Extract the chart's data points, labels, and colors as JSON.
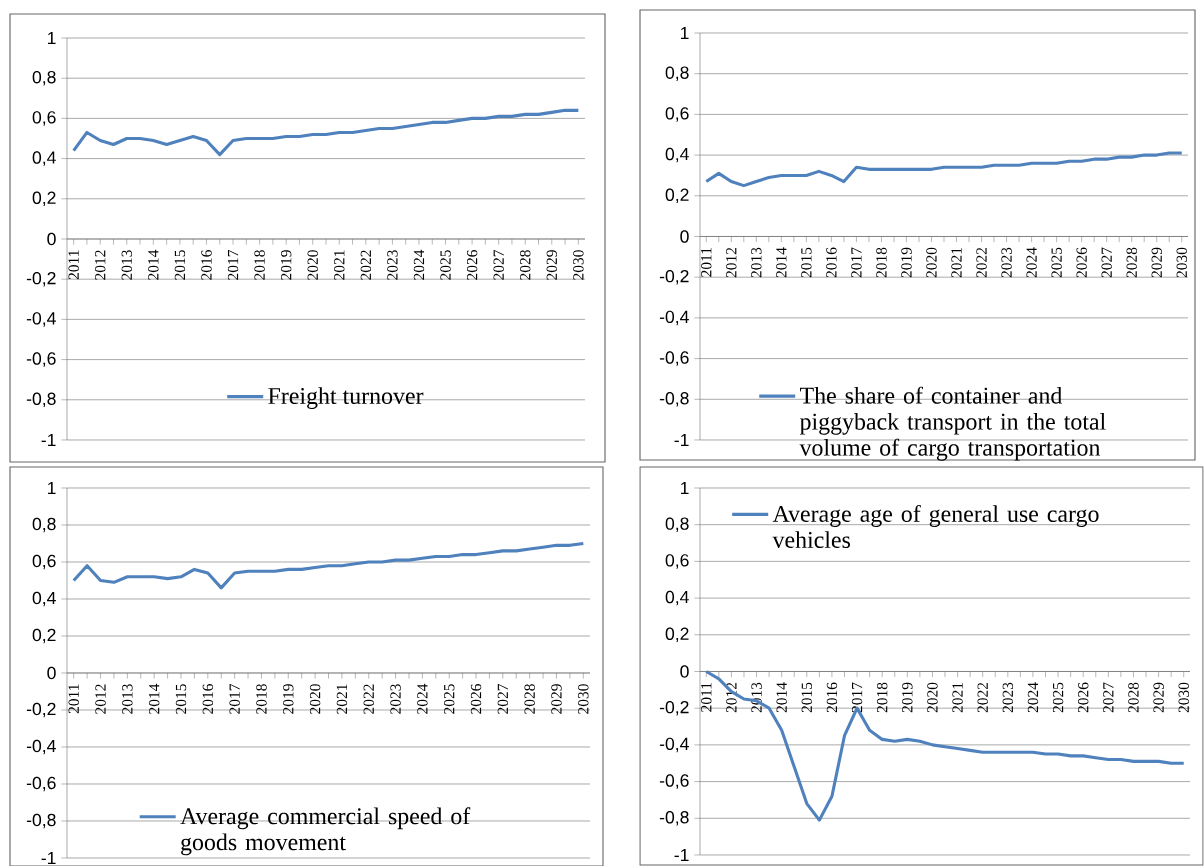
{
  "chart_data": [
    {
      "type": "line",
      "categories": [
        "2011",
        null,
        "2012",
        null,
        "2013",
        null,
        "2014",
        null,
        "2015",
        null,
        "2016",
        null,
        "2017",
        null,
        "2018",
        null,
        "2019",
        null,
        "2020",
        null,
        "2021",
        null,
        "2022",
        null,
        "2023",
        null,
        "2024",
        null,
        "2025",
        null,
        "2026",
        null,
        "2027",
        null,
        "2028",
        null,
        "2029",
        null,
        "2030"
      ],
      "series": [
        {
          "name": "Freight turnover",
          "color": "#4f81bd",
          "values": [
            0.44,
            0.53,
            0.49,
            0.47,
            0.5,
            0.5,
            0.49,
            0.47,
            0.49,
            0.51,
            0.49,
            0.42,
            0.49,
            0.5,
            0.5,
            0.5,
            0.51,
            0.51,
            0.52,
            0.52,
            0.53,
            0.53,
            0.54,
            0.55,
            0.55,
            0.56,
            0.57,
            0.58,
            0.58,
            0.59,
            0.6,
            0.6,
            0.61,
            0.61,
            0.62,
            0.62,
            0.63,
            0.64,
            0.64
          ]
        }
      ],
      "ylim": [
        -1,
        1
      ],
      "yticks": [
        -1,
        {
          "value": -0.8,
          "label": "-0,8"
        },
        {
          "value": -0.6,
          "label": "-0,6"
        },
        {
          "value": -0.4,
          "label": "-0,4"
        },
        {
          "value": -0.2,
          "label": "-0,2"
        },
        0,
        {
          "value": 0.2,
          "label": "0,2"
        },
        {
          "value": 0.4,
          "label": "0,4"
        },
        {
          "value": 0.6,
          "label": "0,6"
        },
        {
          "value": 0.8,
          "label": "0,8"
        },
        1
      ],
      "grid": "y",
      "legend": "bottom"
    },
    {
      "type": "line",
      "categories": [
        "2011",
        null,
        "2012",
        null,
        "2013",
        null,
        "2014",
        null,
        "2015",
        null,
        "2016",
        null,
        "2017",
        null,
        "2018",
        null,
        "2019",
        null,
        "2020",
        null,
        "2021",
        null,
        "2022",
        null,
        "2023",
        null,
        "2024",
        null,
        "2025",
        null,
        "2026",
        null,
        "2027",
        null,
        "2028",
        null,
        "2029",
        null,
        "2030"
      ],
      "series": [
        {
          "name": "The share of container and piggyback transport in the total volume of cargo transportation",
          "color": "#4f81bd",
          "values": [
            0.27,
            0.31,
            0.27,
            0.25,
            0.27,
            0.29,
            0.3,
            0.3,
            0.3,
            0.32,
            0.3,
            0.27,
            0.34,
            0.33,
            0.33,
            0.33,
            0.33,
            0.33,
            0.33,
            0.34,
            0.34,
            0.34,
            0.34,
            0.35,
            0.35,
            0.35,
            0.36,
            0.36,
            0.36,
            0.37,
            0.37,
            0.38,
            0.38,
            0.39,
            0.39,
            0.4,
            0.4,
            0.41,
            0.41
          ]
        }
      ],
      "ylim": [
        -1,
        1
      ],
      "yticks": [
        -1,
        {
          "value": -0.8,
          "label": "-0,8"
        },
        {
          "value": -0.6,
          "label": "-0,6"
        },
        {
          "value": -0.4,
          "label": "-0,4"
        },
        {
          "value": -0.2,
          "label": "-0,2"
        },
        0,
        {
          "value": 0.2,
          "label": "0,2"
        },
        {
          "value": 0.4,
          "label": "0,4"
        },
        {
          "value": 0.6,
          "label": "0,6"
        },
        {
          "value": 0.8,
          "label": "0,8"
        },
        1
      ],
      "grid": "y",
      "legend": "bottom"
    },
    {
      "type": "line",
      "categories": [
        "2011",
        null,
        "2012",
        null,
        "2013",
        null,
        "2014",
        null,
        "2015",
        null,
        "2016",
        null,
        "2017",
        null,
        "2018",
        null,
        "2019",
        null,
        "2020",
        null,
        "2021",
        null,
        "2022",
        null,
        "2023",
        null,
        "2024",
        null,
        "2025",
        null,
        "2026",
        null,
        "2027",
        null,
        "2028",
        null,
        "2029",
        null,
        "2030"
      ],
      "series": [
        {
          "name": "Average commercial speed of goods movement",
          "color": "#4f81bd",
          "values": [
            0.5,
            0.58,
            0.5,
            0.49,
            0.52,
            0.52,
            0.52,
            0.51,
            0.52,
            0.56,
            0.54,
            0.46,
            0.54,
            0.55,
            0.55,
            0.55,
            0.56,
            0.56,
            0.57,
            0.58,
            0.58,
            0.59,
            0.6,
            0.6,
            0.61,
            0.61,
            0.62,
            0.63,
            0.63,
            0.64,
            0.64,
            0.65,
            0.66,
            0.66,
            0.67,
            0.68,
            0.69,
            0.69,
            0.7
          ]
        }
      ],
      "ylim": [
        -1,
        1
      ],
      "yticks": [
        -1,
        {
          "value": -0.8,
          "label": "-0,8"
        },
        {
          "value": -0.6,
          "label": "-0,6"
        },
        {
          "value": -0.4,
          "label": "-0,4"
        },
        {
          "value": -0.2,
          "label": "-0,2"
        },
        0,
        {
          "value": 0.2,
          "label": "0,2"
        },
        {
          "value": 0.4,
          "label": "0,4"
        },
        {
          "value": 0.6,
          "label": "0,6"
        },
        {
          "value": 0.8,
          "label": "0,8"
        },
        1
      ],
      "grid": "y",
      "legend": "bottom"
    },
    {
      "type": "line",
      "categories": [
        "2011",
        null,
        "2012",
        null,
        "2013",
        null,
        "2014",
        null,
        "2015",
        null,
        "2016",
        null,
        "2017",
        null,
        "2018",
        null,
        "2019",
        null,
        "2020",
        null,
        "2021",
        null,
        "2022",
        null,
        "2023",
        null,
        "2024",
        null,
        "2025",
        null,
        "2026",
        null,
        "2027",
        null,
        "2028",
        null,
        "2029",
        null,
        "2030"
      ],
      "series": [
        {
          "name": "Average age of general use cargo vehicles",
          "color": "#4f81bd",
          "values": [
            0,
            -0.04,
            -0.11,
            -0.15,
            -0.16,
            -0.2,
            -0.32,
            -0.52,
            -0.72,
            -0.81,
            -0.68,
            -0.35,
            -0.2,
            -0.32,
            -0.37,
            -0.38,
            -0.37,
            -0.38,
            -0.4,
            -0.41,
            -0.42,
            -0.43,
            -0.44,
            -0.44,
            -0.44,
            -0.44,
            -0.44,
            -0.45,
            -0.45,
            -0.46,
            -0.46,
            -0.47,
            -0.48,
            -0.48,
            -0.49,
            -0.49,
            -0.49,
            -0.5,
            -0.5
          ]
        }
      ],
      "ylim": [
        -1,
        1
      ],
      "yticks": [
        -1,
        {
          "value": -0.8,
          "label": "-0,8"
        },
        {
          "value": -0.6,
          "label": "-0,6"
        },
        {
          "value": -0.4,
          "label": "-0,4"
        },
        {
          "value": -0.2,
          "label": "-0,2"
        },
        0,
        {
          "value": 0.2,
          "label": "0,2"
        },
        {
          "value": 0.4,
          "label": "0,4"
        },
        {
          "value": 0.6,
          "label": "0,6"
        },
        {
          "value": 0.8,
          "label": "0,8"
        },
        1
      ],
      "grid": "y",
      "legend": "top"
    }
  ]
}
